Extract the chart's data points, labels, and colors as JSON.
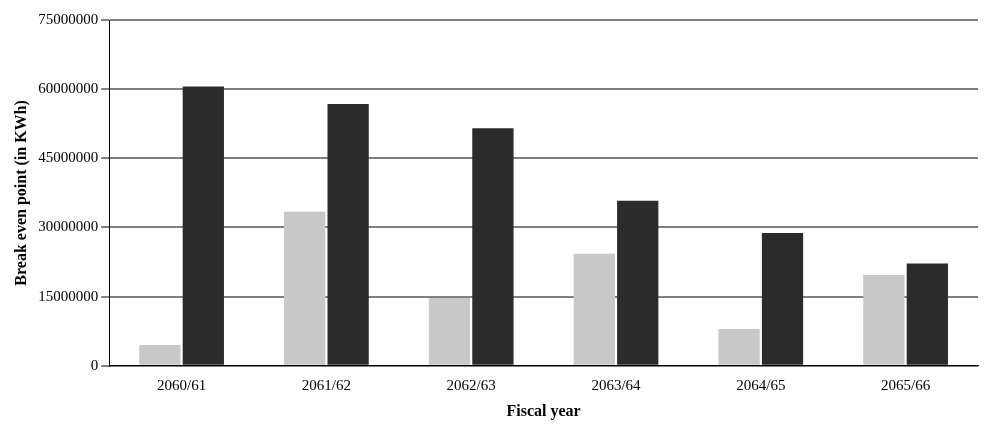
{
  "chart_data": {
    "type": "bar",
    "xlabel": "Fiscal year",
    "ylabel": "Break even point (in KWh)",
    "categories": [
      "2060/61",
      "2061/62",
      "2062/63",
      "2063/64",
      "2064/65",
      "2065/66"
    ],
    "series": [
      {
        "color": "#c8c8c8",
        "values": [
          4500000,
          33400000,
          14700000,
          24300000,
          8000000,
          19700000
        ]
      },
      {
        "color": "#2b2b2b",
        "values": [
          60600000,
          56800000,
          51500000,
          35800000,
          28800000,
          22200000
        ]
      }
    ],
    "ylim": [
      0,
      75000000
    ],
    "yticks": [
      0,
      15000000,
      30000000,
      45000000,
      60000000,
      75000000
    ],
    "grid": "y",
    "legend": false
  }
}
